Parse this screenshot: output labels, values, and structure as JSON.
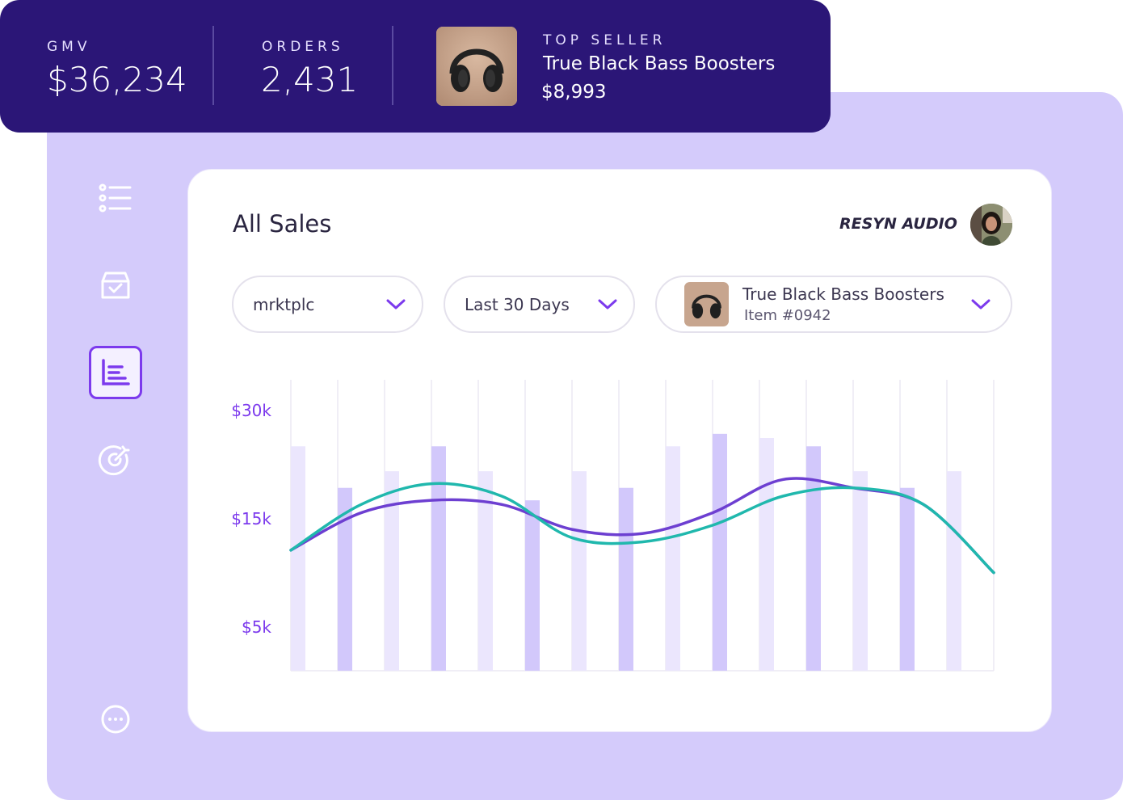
{
  "stats": {
    "gmv": {
      "label": "GMV",
      "value": "$36,234"
    },
    "orders": {
      "label": "ORDERS",
      "value": "2,431"
    },
    "top_seller": {
      "label": "TOP SELLER",
      "name": "True Black Bass Boosters",
      "price": "$8,993"
    }
  },
  "sidebar": {
    "items": [
      {
        "name": "list-icon"
      },
      {
        "name": "inbox-check-icon"
      },
      {
        "name": "report-icon",
        "active": true
      },
      {
        "name": "target-icon"
      },
      {
        "name": "more-icon"
      }
    ]
  },
  "card": {
    "title": "All Sales",
    "brand": "RESYN AUDIO"
  },
  "filters": {
    "channel": "mrktplc",
    "range": "Last 30 Days",
    "product": {
      "title": "True Black Bass Boosters",
      "sub": "Item #0942"
    }
  },
  "colors": {
    "navy": "#2b1677",
    "lavender": "#d4cbfb",
    "purple_line": "#6d3fd1",
    "teal_line": "#20b8ad",
    "bar_light": "#ebe6fd",
    "bar_dark": "#d2c8fb"
  },
  "chart_data": {
    "type": "bar",
    "yticks": [
      "$30k",
      "$15k",
      "$5k"
    ],
    "ylim": [
      0,
      35
    ],
    "bars": [
      27,
      22,
      24,
      27,
      24,
      20.5,
      24,
      22,
      27,
      28.5,
      28,
      27,
      24,
      22,
      24
    ],
    "series": [
      {
        "values": [
          14.5,
          19,
          20.5,
          20,
          17,
          16.5,
          19,
          23,
          22,
          20,
          11.8
        ]
      },
      {
        "values": [
          14.5,
          20,
          22.5,
          21,
          16,
          15.5,
          17.5,
          21,
          22,
          20,
          11.8
        ]
      }
    ]
  }
}
